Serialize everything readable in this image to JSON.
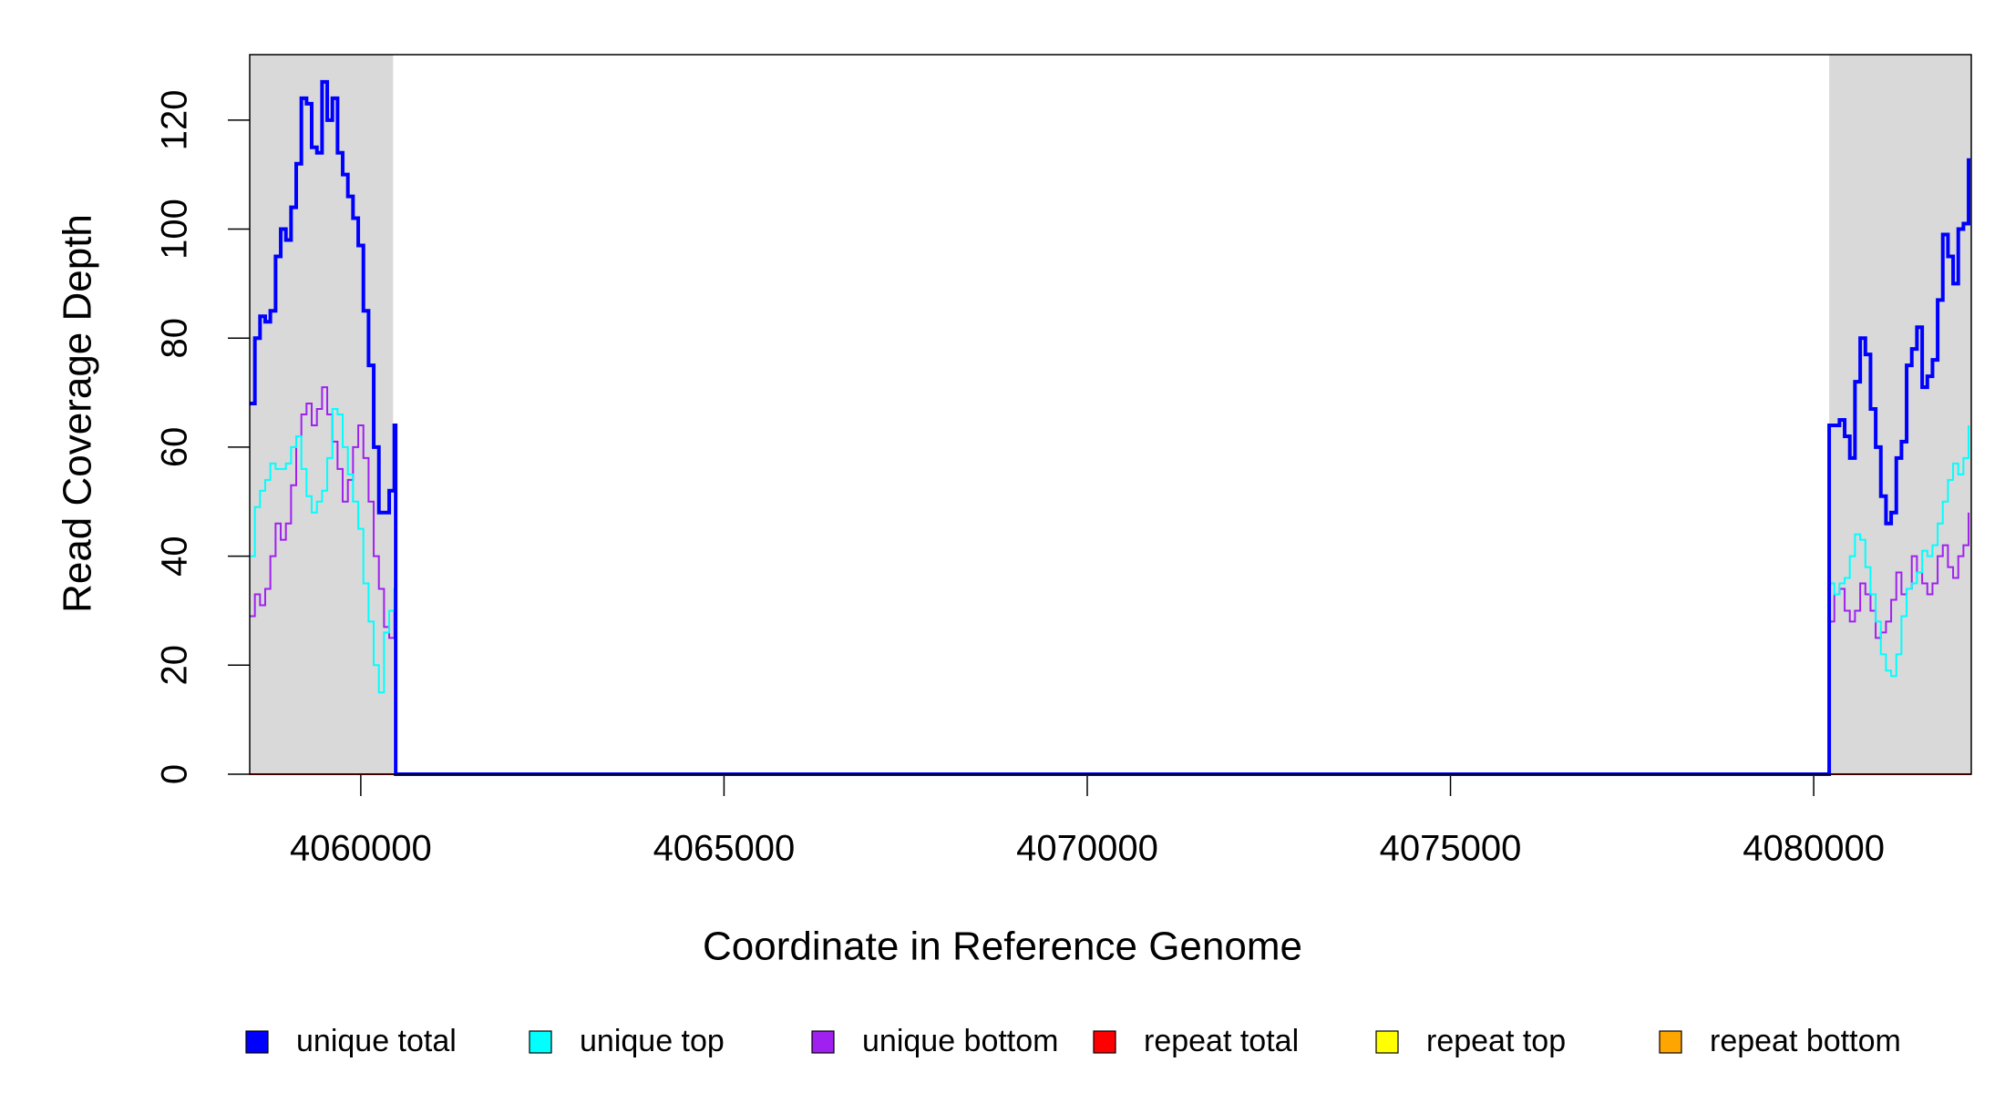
{
  "chart_data": {
    "type": "step-line",
    "xlabel": "Coordinate in Reference Genome",
    "ylabel": "Read Coverage Depth",
    "xlim": [
      4058471,
      4082169
    ],
    "ylim": [
      0,
      132
    ],
    "xticks": [
      4060000,
      4065000,
      4070000,
      4075000,
      4080000
    ],
    "yticks": [
      0,
      20,
      40,
      60,
      80,
      100,
      120
    ],
    "shaded_regions": [
      [
        4058471,
        4060445
      ],
      [
        4080213,
        4082169
      ]
    ],
    "shade_color": "#d9d9d9",
    "x": [
      4058471,
      4058542,
      4058613,
      4058684,
      4058755,
      4058827,
      4058898,
      4058969,
      4059040,
      4059111,
      4059182,
      4059253,
      4059324,
      4059396,
      4059467,
      4059538,
      4059609,
      4059680,
      4059751,
      4059822,
      4059893,
      4059965,
      4060036,
      4060107,
      4060178,
      4060249,
      4060320,
      4060391,
      4060462,
      4060480,
      4080195,
      4080213,
      4080284,
      4080355,
      4080426,
      4080497,
      4080568,
      4080640,
      4080711,
      4080782,
      4080853,
      4080924,
      4080995,
      4081066,
      4081137,
      4081208,
      4081279,
      4081350,
      4081421,
      4081493,
      4081564,
      4081635,
      4081706,
      4081777,
      4081848,
      4081919,
      4081990,
      4082061,
      4082132
    ],
    "series": [
      {
        "name": "unique total",
        "color": "#0000ff",
        "values": [
          68,
          80,
          84,
          83,
          85,
          95,
          100,
          98,
          104,
          112,
          124,
          123,
          115,
          114,
          127,
          120,
          124,
          114,
          110,
          106,
          102,
          97,
          85,
          75,
          60,
          48,
          48,
          52,
          64,
          0,
          0,
          64,
          64,
          65,
          62,
          58,
          72,
          80,
          77,
          67,
          60,
          51,
          46,
          48,
          58,
          61,
          75,
          78,
          82,
          71,
          73,
          76,
          87,
          99,
          95,
          90,
          100,
          101,
          113
        ]
      },
      {
        "name": "unique top",
        "color": "#00ffff",
        "values": [
          40,
          49,
          52,
          54,
          57,
          56,
          56,
          57,
          60,
          62,
          56,
          51,
          48,
          50,
          52,
          58,
          67,
          66,
          60,
          55,
          50,
          45,
          35,
          28,
          20,
          15,
          26,
          30,
          34,
          0,
          0,
          35,
          33,
          35,
          36,
          40,
          44,
          43,
          38,
          33,
          28,
          22,
          19,
          18,
          22,
          29,
          34,
          35,
          37,
          41,
          40,
          42,
          46,
          50,
          54,
          57,
          55,
          58,
          64
        ]
      },
      {
        "name": "unique bottom",
        "color": "#a020f0",
        "values": [
          29,
          33,
          31,
          34,
          40,
          46,
          43,
          46,
          53,
          62,
          66,
          68,
          64,
          67,
          71,
          66,
          61,
          56,
          50,
          54,
          60,
          64,
          58,
          50,
          40,
          34,
          27,
          25,
          30,
          0,
          0,
          28,
          33,
          34,
          30,
          28,
          30,
          35,
          33,
          30,
          25,
          26,
          28,
          32,
          37,
          33,
          34,
          40,
          37,
          35,
          33,
          35,
          40,
          42,
          38,
          36,
          40,
          42,
          48
        ]
      },
      {
        "name": "repeat total",
        "color": "#ff0000",
        "x": [
          4058471,
          4082169
        ],
        "values": [
          0,
          0
        ]
      },
      {
        "name": "repeat top",
        "color": "#ffff00",
        "x": [
          4058471,
          4082169
        ],
        "values": [
          0,
          0
        ]
      },
      {
        "name": "repeat bottom",
        "color": "#ffa500",
        "x": [
          4058471,
          4082169
        ],
        "values": [
          0,
          0
        ]
      }
    ]
  }
}
